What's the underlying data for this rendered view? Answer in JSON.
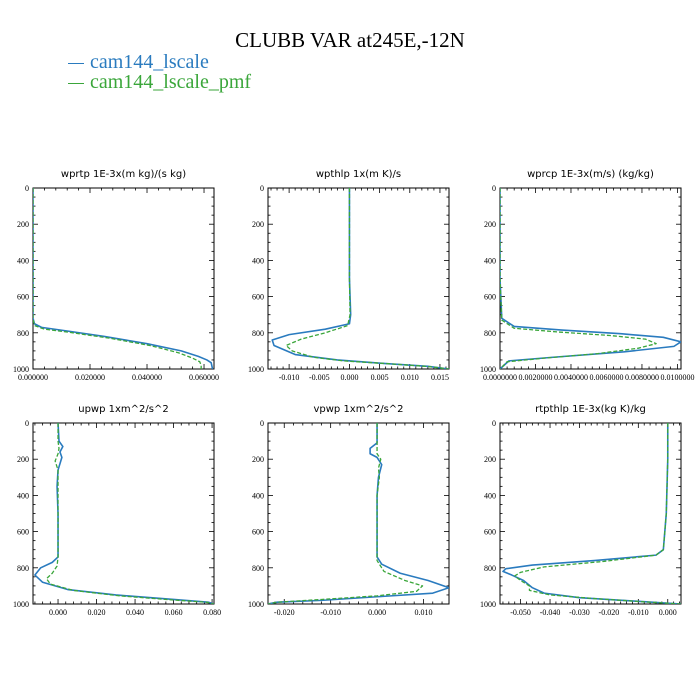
{
  "title": "CLUBB VAR at245E,-12N",
  "legend": [
    {
      "label": "cam144_lscale",
      "color": "#2a7bbf",
      "style": "solid"
    },
    {
      "label": "cam144_lscale_pmf",
      "color": "#3aa63a",
      "style": "dashed"
    }
  ],
  "chart_data": [
    {
      "type": "line",
      "title": "wprtp  1E-3x(m kg)/(s kg)",
      "xlim": [
        0.0,
        0.0635
      ],
      "ylim": [
        0,
        1000
      ],
      "xticks": [
        0.0,
        0.02,
        0.04,
        0.06
      ],
      "xtick_labels": [
        "0.000000",
        "0.020000",
        "0.040000",
        "0.060000"
      ],
      "yticks": [
        0,
        200,
        400,
        600,
        800,
        1000
      ],
      "ytick_labels": [
        "0",
        "200",
        "400",
        "600",
        "800",
        "1000"
      ],
      "series": [
        {
          "name": "cam144_lscale",
          "x": [
            0.0,
            0.0,
            0.0,
            0.0,
            0.0005,
            0.003,
            0.012,
            0.025,
            0.04,
            0.052,
            0.058,
            0.061,
            0.0625,
            0.063
          ],
          "y": [
            0,
            200,
            500,
            720,
            750,
            770,
            790,
            820,
            860,
            900,
            930,
            950,
            965,
            1000
          ]
        },
        {
          "name": "cam144_lscale_pmf",
          "x": [
            0.0,
            0.0,
            0.0,
            0.0,
            0.0005,
            0.004,
            0.014,
            0.027,
            0.041,
            0.051,
            0.056,
            0.0585,
            0.059,
            0.059
          ],
          "y": [
            0,
            200,
            500,
            720,
            760,
            780,
            800,
            830,
            870,
            910,
            940,
            960,
            980,
            1000
          ]
        }
      ]
    },
    {
      "type": "line",
      "title": "wpthlp  1x(m K)/s",
      "xlim": [
        -0.0135,
        0.0165
      ],
      "ylim": [
        0,
        1000
      ],
      "xticks": [
        -0.01,
        -0.005,
        0.0,
        0.005,
        0.01,
        0.015
      ],
      "xtick_labels": [
        "-0.010",
        "-0.005",
        "0.000",
        "0.005",
        "0.010",
        "0.015"
      ],
      "yticks": [
        0,
        200,
        400,
        600,
        800,
        1000
      ],
      "ytick_labels": [
        "0",
        "200",
        "400",
        "600",
        "800",
        "1000"
      ],
      "series": [
        {
          "name": "cam144_lscale",
          "x": [
            0.0,
            0.0,
            0.0,
            0.0002,
            0.0,
            -0.004,
            -0.01,
            -0.0128,
            -0.0125,
            -0.009,
            -0.002,
            0.006,
            0.013,
            0.0165
          ],
          "y": [
            0,
            200,
            500,
            700,
            750,
            780,
            810,
            840,
            870,
            920,
            950,
            970,
            985,
            1000
          ]
        },
        {
          "name": "cam144_lscale_pmf",
          "x": [
            0.0,
            0.0,
            0.0,
            0.0001,
            -0.0003,
            -0.004,
            -0.008,
            -0.0105,
            -0.0095,
            -0.006,
            -0.001,
            0.007,
            0.013,
            0.0165
          ],
          "y": [
            0,
            200,
            500,
            700,
            760,
            800,
            835,
            870,
            900,
            935,
            955,
            972,
            986,
            1000
          ]
        }
      ]
    },
    {
      "type": "line",
      "title": "wprcp  1E-3x(m/s) (kg/kg)",
      "xlim": [
        0.0,
        0.0102
      ],
      "ylim": [
        0,
        1000
      ],
      "xticks": [
        0.0,
        0.002,
        0.004,
        0.006,
        0.008,
        0.01
      ],
      "xtick_labels": [
        "0.0000000",
        "0.0020000",
        "0.0040000",
        "0.0060000",
        "0.0080000",
        "0.0100000"
      ],
      "yticks": [
        0,
        200,
        400,
        600,
        800,
        1000
      ],
      "ytick_labels": [
        "0",
        "200",
        "400",
        "600",
        "800",
        "1000"
      ],
      "series": [
        {
          "name": "cam144_lscale",
          "x": [
            0.0,
            0.0,
            0.0,
            0.0001,
            0.0008,
            0.0035,
            0.0068,
            0.0092,
            0.0102,
            0.0098,
            0.007,
            0.003,
            0.0005,
            0.0
          ],
          "y": [
            0,
            200,
            500,
            720,
            765,
            785,
            805,
            825,
            850,
            875,
            905,
            935,
            955,
            1000
          ]
        },
        {
          "name": "cam144_lscale_pmf",
          "x": [
            0.0,
            0.0,
            0.0,
            0.0001,
            0.0008,
            0.0032,
            0.0062,
            0.0082,
            0.0088,
            0.0078,
            0.0055,
            0.0025,
            0.0004,
            0.0
          ],
          "y": [
            0,
            200,
            500,
            730,
            775,
            795,
            815,
            835,
            860,
            885,
            915,
            940,
            960,
            1000
          ]
        }
      ]
    },
    {
      "type": "line",
      "title": "upwp   1xm^2/s^2",
      "xlim": [
        -0.013,
        0.081
      ],
      "ylim": [
        0,
        1000
      ],
      "xticks": [
        0.0,
        0.02,
        0.04,
        0.06,
        0.08
      ],
      "xtick_labels": [
        "0.000",
        "0.020",
        "0.040",
        "0.060",
        "0.080"
      ],
      "yticks": [
        0,
        200,
        400,
        600,
        800,
        1000
      ],
      "ytick_labels": [
        "0",
        "200",
        "400",
        "600",
        "800",
        "1000"
      ],
      "series": [
        {
          "name": "cam144_lscale",
          "x": [
            0.0,
            0.0005,
            0.0025,
            0.001,
            0.002,
            0.0,
            -0.0005,
            0.0,
            0.0,
            -0.003,
            -0.009,
            -0.012,
            -0.008,
            0.005,
            0.03,
            0.06,
            0.078,
            0.081
          ],
          "y": [
            0,
            100,
            130,
            160,
            190,
            260,
            350,
            500,
            740,
            770,
            800,
            840,
            880,
            920,
            950,
            975,
            990,
            1000
          ]
        },
        {
          "name": "cam144_lscale_pmf",
          "x": [
            0.0,
            0.0,
            0.0005,
            0.0,
            -0.0015,
            0.0,
            0.0,
            0.0,
            0.0,
            -0.0005,
            -0.003,
            -0.006,
            -0.004,
            0.008,
            0.032,
            0.06,
            0.077,
            0.081
          ],
          "y": [
            0,
            100,
            140,
            170,
            210,
            260,
            350,
            500,
            740,
            790,
            830,
            860,
            890,
            925,
            955,
            978,
            990,
            1000
          ]
        }
      ]
    },
    {
      "type": "line",
      "title": "vpwp   1xm^2/s^2",
      "xlim": [
        -0.0235,
        0.0155
      ],
      "ylim": [
        0,
        1000
      ],
      "xticks": [
        -0.02,
        -0.01,
        0.0,
        0.01
      ],
      "xtick_labels": [
        "-0.020",
        "-0.010",
        "0.000",
        "0.010"
      ],
      "yticks": [
        0,
        200,
        400,
        600,
        800,
        1000
      ],
      "ytick_labels": [
        "0",
        "200",
        "400",
        "600",
        "800",
        "1000"
      ],
      "series": [
        {
          "name": "cam144_lscale",
          "x": [
            0.0,
            0.0,
            -0.0015,
            -0.0015,
            0.0,
            0.001,
            0.0003,
            0.0,
            0.0,
            0.001,
            0.005,
            0.011,
            0.0155,
            0.012,
            0.0,
            -0.012,
            -0.0215,
            -0.0235
          ],
          "y": [
            0,
            110,
            140,
            170,
            190,
            230,
            300,
            400,
            740,
            780,
            830,
            870,
            910,
            940,
            960,
            980,
            990,
            1000
          ]
        },
        {
          "name": "cam144_lscale_pmf",
          "x": [
            0.0,
            0.0,
            0.0,
            0.0,
            0.0008,
            0.0003,
            0.0005,
            0.0,
            0.0,
            0.0015,
            0.006,
            0.0098,
            0.0085,
            0.0,
            -0.012,
            -0.0215,
            -0.0235
          ],
          "y": [
            0,
            100,
            140,
            170,
            200,
            250,
            300,
            400,
            760,
            820,
            870,
            900,
            930,
            955,
            975,
            990,
            1000
          ]
        }
      ]
    },
    {
      "type": "line",
      "title": "rtpthlp   1E-3x(kg K)/kg",
      "xlim": [
        -0.057,
        0.0045
      ],
      "ylim": [
        0,
        1000
      ],
      "xticks": [
        -0.05,
        -0.04,
        -0.03,
        -0.02,
        -0.01,
        0.0
      ],
      "xtick_labels": [
        "-0.050",
        "-0.040",
        "-0.030",
        "-0.020",
        "-0.010",
        "0.000"
      ],
      "yticks": [
        0,
        200,
        400,
        600,
        800,
        1000
      ],
      "ytick_labels": [
        "0",
        "200",
        "400",
        "600",
        "800",
        "1000"
      ],
      "series": [
        {
          "name": "cam144_lscale",
          "x": [
            0.0,
            0.0,
            -0.0005,
            -0.0015,
            -0.004,
            -0.025,
            -0.046,
            -0.055,
            -0.056,
            -0.053,
            -0.049,
            -0.046,
            -0.042,
            -0.03,
            -0.01,
            0.0045
          ],
          "y": [
            0,
            200,
            500,
            700,
            730,
            760,
            785,
            805,
            820,
            840,
            870,
            910,
            940,
            965,
            985,
            1000
          ]
        },
        {
          "name": "cam144_lscale_pmf",
          "x": [
            0.0,
            0.0,
            -0.0005,
            -0.0015,
            -0.004,
            -0.022,
            -0.042,
            -0.05,
            -0.052,
            -0.05,
            -0.047,
            -0.047,
            -0.04,
            -0.025,
            -0.008,
            0.0045
          ],
          "y": [
            0,
            200,
            500,
            700,
            730,
            765,
            795,
            825,
            845,
            870,
            900,
            925,
            950,
            970,
            988,
            1000
          ]
        }
      ]
    }
  ]
}
